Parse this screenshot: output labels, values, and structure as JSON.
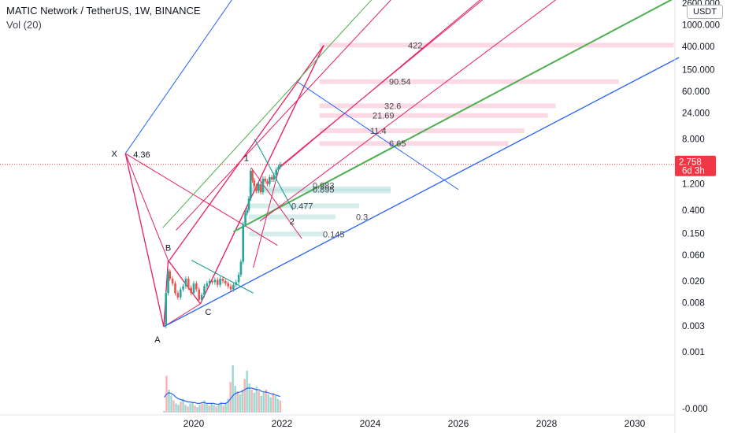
{
  "header": {
    "symbol_line": "MATIC Network / TetherUS, 1W, BINANCE",
    "volume_line": "Vol (20)"
  },
  "axis": {
    "unit_label": "USDT",
    "current_price": "2.758",
    "countdown": "6d 3h"
  },
  "colors": {
    "up": "#26a69a",
    "down": "#ef5350",
    "pink": "#e91e63",
    "blue": "#2962ff",
    "green": "#4caf50",
    "teal": "#009688",
    "badge": "#f23645"
  },
  "chart_data": {
    "type": "line",
    "y_scale": "log",
    "y_tick_labels": [
      "2600.000",
      "1000.000",
      "400.000",
      "150.000",
      "60.000",
      "24.000",
      "8.000",
      "2.758",
      "1.200",
      "0.400",
      "0.150",
      "0.060",
      "0.020",
      "0.008",
      "0.003",
      "0.001",
      "-0.000"
    ],
    "y_tick_values": [
      2600,
      1000,
      400,
      150,
      60,
      24,
      8,
      2.758,
      1.2,
      0.4,
      0.15,
      0.06,
      0.02,
      0.008,
      0.003,
      0.001,
      0
    ],
    "x_tick_labels": [
      "2020",
      "2022",
      "2024",
      "2026",
      "2028",
      "2030"
    ],
    "x_tick_years": [
      2020,
      2022,
      2024,
      2026,
      2028,
      2030
    ],
    "x_range": [
      2017.1,
      2031.0
    ],
    "wave_points": [
      {
        "label": "X",
        "date": 2018.45,
        "price": 4.36,
        "value_label": "4.36"
      },
      {
        "label": "A",
        "date": 2019.32,
        "price": 0.0029
      },
      {
        "label": "B",
        "date": 2019.42,
        "price": 0.048
      },
      {
        "label": "C",
        "date": 2020.15,
        "price": 0.0076
      },
      {
        "label": "1",
        "date": 2021.3,
        "price": 2.6
      },
      {
        "label": "2",
        "date": 2022.05,
        "price": 0.35
      }
    ],
    "price_series": {
      "name": "",
      "points": [
        [
          2019.33,
          0.003
        ],
        [
          2019.37,
          0.012
        ],
        [
          2019.42,
          0.03
        ],
        [
          2019.46,
          0.022
        ],
        [
          2019.52,
          0.018
        ],
        [
          2019.58,
          0.012
        ],
        [
          2019.64,
          0.01
        ],
        [
          2019.7,
          0.014
        ],
        [
          2019.76,
          0.016
        ],
        [
          2019.82,
          0.022
        ],
        [
          2019.88,
          0.015
        ],
        [
          2019.94,
          0.012
        ],
        [
          2020.0,
          0.018
        ],
        [
          2020.06,
          0.014
        ],
        [
          2020.12,
          0.009
        ],
        [
          2020.18,
          0.011
        ],
        [
          2020.24,
          0.016
        ],
        [
          2020.3,
          0.018
        ],
        [
          2020.36,
          0.02
        ],
        [
          2020.42,
          0.019
        ],
        [
          2020.48,
          0.021
        ],
        [
          2020.54,
          0.017
        ],
        [
          2020.6,
          0.022
        ],
        [
          2020.66,
          0.02
        ],
        [
          2020.72,
          0.018
        ],
        [
          2020.78,
          0.016
        ],
        [
          2020.84,
          0.014
        ],
        [
          2020.9,
          0.017
        ],
        [
          2020.96,
          0.019
        ],
        [
          2021.02,
          0.026
        ],
        [
          2021.07,
          0.045
        ],
        [
          2021.12,
          0.22
        ],
        [
          2021.17,
          0.35
        ],
        [
          2021.21,
          0.4
        ],
        [
          2021.25,
          0.65
        ],
        [
          2021.29,
          2.1
        ],
        [
          2021.33,
          1.4
        ],
        [
          2021.37,
          1.1
        ],
        [
          2021.42,
          0.9
        ],
        [
          2021.47,
          1.2
        ],
        [
          2021.52,
          0.85
        ],
        [
          2021.57,
          1.5
        ],
        [
          2021.62,
          1.35
        ],
        [
          2021.67,
          1.2
        ],
        [
          2021.72,
          1.6
        ],
        [
          2021.77,
          1.45
        ],
        [
          2021.82,
          1.75
        ],
        [
          2021.87,
          2.2
        ],
        [
          2021.92,
          2.45
        ],
        [
          2021.96,
          2.758
        ]
      ]
    },
    "fib_levels_upper": [
      {
        "label": "422",
        "price": 422
      },
      {
        "label": "90.54",
        "price": 90.54
      },
      {
        "label": "32.6",
        "price": 32.6
      },
      {
        "label": "21.69",
        "price": 21.69
      },
      {
        "label": "11.4",
        "price": 11.4
      },
      {
        "label": "6.65",
        "price": 6.65
      }
    ],
    "fib_levels_lower": [
      {
        "label": "0.983",
        "price": 0.983
      },
      {
        "label": "0.895",
        "price": 0.895
      },
      {
        "label": "0.477",
        "price": 0.477
      },
      {
        "label": "0.3",
        "price": 0.3
      },
      {
        "label": "0.145",
        "price": 0.145
      }
    ],
    "volume": [
      2,
      48,
      30,
      22,
      16,
      12,
      10,
      14,
      18,
      10,
      8,
      12,
      14,
      9,
      7,
      10,
      12,
      16,
      11,
      9,
      12,
      10,
      8,
      11,
      14,
      9,
      12,
      18,
      40,
      62,
      35,
      28,
      24,
      30,
      44,
      55,
      38,
      30,
      26,
      34,
      28,
      22,
      26,
      30,
      24,
      20,
      26,
      22,
      18,
      16
    ],
    "volume_ma": [
      20,
      24,
      26,
      25,
      23,
      20,
      18,
      17,
      16,
      15,
      14,
      14,
      13,
      13,
      12,
      12,
      13,
      13,
      12,
      12,
      12,
      12,
      11,
      11,
      12,
      12,
      12,
      14,
      18,
      22,
      25,
      26,
      27,
      28,
      30,
      32,
      32,
      32,
      31,
      30,
      30,
      28,
      27,
      27,
      26,
      25,
      24,
      23,
      22,
      21
    ]
  }
}
